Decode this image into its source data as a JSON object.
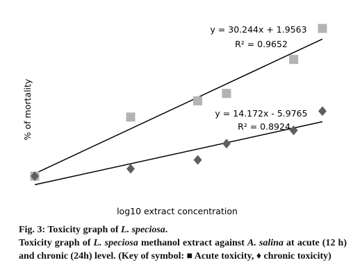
{
  "chart_data": {
    "type": "scatter",
    "x_label": "log10 extract concentration",
    "y_label": "% of mortality",
    "xlim": [
      0,
      3
    ],
    "ylim": [
      0,
      100
    ],
    "trendline": true,
    "series": [
      {
        "marker": "square",
        "color": "#b3b3b3",
        "x": [
          0,
          1,
          1.7,
          2,
          2.7,
          3
        ],
        "values": [
          0,
          40,
          51,
          56,
          79,
          100
        ],
        "equation": "y = 30.244x + 1.9563",
        "r2": "R² = 0.9652"
      },
      {
        "marker": "diamond",
        "color": "#5f5f5f",
        "x": [
          0,
          1,
          1.7,
          2,
          2.7,
          3
        ],
        "values": [
          0,
          5,
          11,
          22,
          31,
          44
        ],
        "equation": "y = 14.172x - 5.9765",
        "r2": "R² = 0.8924"
      }
    ]
  },
  "caption": {
    "title": [
      "Fig. 3: Toxicity graph of ",
      "L. speciosa",
      "."
    ],
    "text": [
      "Toxicity graph of ",
      "L. speciosa",
      " methanol extract against ",
      "A. salina",
      " at acute (12 h) and chronic (24h) level. (Key of symbol: ■ Acute toxicity, ♦ chronic toxicity)"
    ]
  }
}
